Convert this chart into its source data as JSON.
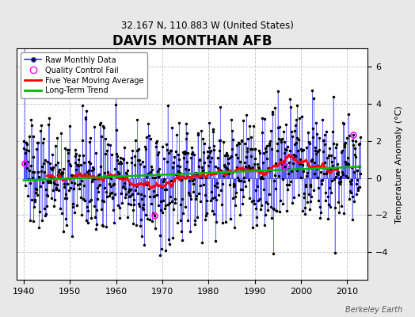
{
  "title": "DAVIS MONTHAN AFB",
  "subtitle": "32.167 N, 110.883 W (United States)",
  "ylabel": "Temperature Anomaly (°C)",
  "credit": "Berkeley Earth",
  "year_start": 1940,
  "year_end": 2013,
  "ylim": [
    -5.5,
    7.0
  ],
  "yticks": [
    -4,
    -2,
    0,
    2,
    4,
    6
  ],
  "fig_background": "#e8e8e8",
  "plot_background": "#ffffff",
  "raw_line_color": "#3333ff",
  "raw_fill_color": "#aaaaff",
  "raw_marker_color": "#000000",
  "moving_avg_color": "#ff0000",
  "trend_color": "#00bb00",
  "qc_fail_color": "#ff00ff",
  "grid_color": "#cccccc",
  "qc_fail_indices": [
    3,
    340,
    680,
    856
  ]
}
